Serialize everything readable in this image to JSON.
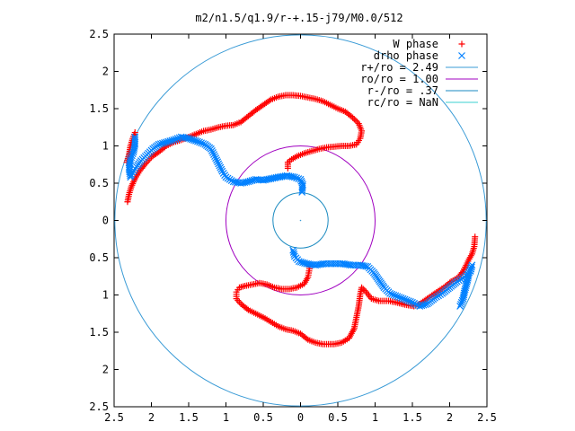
{
  "chart_data": {
    "type": "scatter",
    "title": "m2/n1.5/q1.9/r-+.15-j79/M0.0/512",
    "xlabel": "",
    "ylabel": "",
    "xlim": [
      -2.5,
      2.5
    ],
    "ylim": [
      -2.5,
      2.5
    ],
    "x_tick_values": [
      -2.5,
      -2,
      -1.5,
      -1,
      -0.5,
      0,
      0.5,
      1,
      1.5,
      2,
      2.5
    ],
    "x_tick_labels": [
      "2.5",
      "2",
      "1.5",
      "1",
      "0.5",
      "0",
      "0.5",
      "1",
      "1.5",
      "2",
      "2.5"
    ],
    "y_tick_values": [
      2.5,
      2,
      1.5,
      1,
      0.5,
      0,
      -0.5,
      -1,
      -1.5,
      -2,
      -2.5
    ],
    "y_tick_labels": [
      "2.5",
      "2",
      "1.5",
      "1",
      "0.5",
      "0",
      "0.5",
      "1",
      "1.5",
      "2",
      "2.5"
    ],
    "grid": false,
    "legend_position": "top-right",
    "legend": [
      {
        "label": "W phase",
        "marker": "plus",
        "color": "#ff0000"
      },
      {
        "label": "drho phase",
        "marker": "cross",
        "color": "#0080ff"
      },
      {
        "label": "r+/ro = 2.49",
        "marker": "line",
        "color": "#3a9bd6"
      },
      {
        "label": "ro/ro = 1.00",
        "marker": "line",
        "color": "#a000c0"
      },
      {
        "label": "r-/ro = .37",
        "marker": "line",
        "color": "#1a8ac0"
      },
      {
        "label": "rc/ro = NaN",
        "marker": "line",
        "color": "#3ad0d0"
      }
    ],
    "circles": [
      {
        "name": "r+",
        "radius": 2.49,
        "color": "#3a9bd6"
      },
      {
        "name": "ro",
        "radius": 1.0,
        "color": "#a000c0"
      },
      {
        "name": "r-",
        "radius": 0.37,
        "color": "#1a8ac0"
      }
    ],
    "series": [
      {
        "name": "W phase",
        "color": "#ff0000",
        "marker": "plus",
        "points": [
          [
            2.34,
            -0.22
          ],
          [
            2.33,
            -0.35
          ],
          [
            2.3,
            -0.45
          ],
          [
            2.26,
            -0.52
          ],
          [
            2.22,
            -0.6
          ],
          [
            2.18,
            -0.68
          ],
          [
            2.12,
            -0.76
          ],
          [
            2.02,
            -0.82
          ],
          [
            1.92,
            -0.9
          ],
          [
            1.8,
            -0.98
          ],
          [
            1.7,
            -1.05
          ],
          [
            1.6,
            -1.12
          ],
          [
            1.52,
            -1.15
          ],
          [
            1.4,
            -1.13
          ],
          [
            1.28,
            -1.1
          ],
          [
            1.18,
            -1.08
          ],
          [
            1.05,
            -1.08
          ],
          [
            0.95,
            -1.05
          ],
          [
            0.88,
            -0.96
          ],
          [
            0.82,
            -0.9
          ],
          [
            0.8,
            -1.0
          ],
          [
            0.78,
            -1.15
          ],
          [
            0.75,
            -1.3
          ],
          [
            0.72,
            -1.45
          ],
          [
            0.65,
            -1.58
          ],
          [
            0.55,
            -1.64
          ],
          [
            0.45,
            -1.66
          ],
          [
            0.3,
            -1.66
          ],
          [
            0.2,
            -1.64
          ],
          [
            0.1,
            -1.6
          ],
          [
            0.0,
            -1.52
          ],
          [
            -0.1,
            -1.48
          ],
          [
            -0.2,
            -1.46
          ],
          [
            -0.3,
            -1.42
          ],
          [
            -0.4,
            -1.36
          ],
          [
            -0.5,
            -1.3
          ],
          [
            -0.6,
            -1.25
          ],
          [
            -0.7,
            -1.2
          ],
          [
            -0.8,
            -1.12
          ],
          [
            -0.86,
            -1.05
          ],
          [
            -0.86,
            -0.96
          ],
          [
            -0.82,
            -0.9
          ],
          [
            -0.75,
            -0.88
          ],
          [
            -0.65,
            -0.86
          ],
          [
            -0.55,
            -0.84
          ],
          [
            -0.45,
            -0.86
          ],
          [
            -0.35,
            -0.9
          ],
          [
            -0.25,
            -0.92
          ],
          [
            -0.15,
            -0.92
          ],
          [
            -0.05,
            -0.9
          ],
          [
            0.05,
            -0.85
          ],
          [
            0.1,
            -0.76
          ],
          [
            0.12,
            -0.65
          ],
          [
            0.12,
            -0.6
          ],
          [
            -0.17,
            0.7
          ],
          [
            -0.17,
            0.78
          ],
          [
            -0.12,
            0.82
          ],
          [
            -0.05,
            0.86
          ],
          [
            0.05,
            0.9
          ],
          [
            0.15,
            0.93
          ],
          [
            0.25,
            0.96
          ],
          [
            0.35,
            0.98
          ],
          [
            0.45,
            0.99
          ],
          [
            0.55,
            1.0
          ],
          [
            0.65,
            1.0
          ],
          [
            0.75,
            1.02
          ],
          [
            0.8,
            1.1
          ],
          [
            0.82,
            1.2
          ],
          [
            0.78,
            1.3
          ],
          [
            0.7,
            1.38
          ],
          [
            0.6,
            1.46
          ],
          [
            0.5,
            1.5
          ],
          [
            0.4,
            1.55
          ],
          [
            0.3,
            1.6
          ],
          [
            0.2,
            1.63
          ],
          [
            0.1,
            1.65
          ],
          [
            0.0,
            1.67
          ],
          [
            -0.1,
            1.68
          ],
          [
            -0.2,
            1.68
          ],
          [
            -0.3,
            1.66
          ],
          [
            -0.4,
            1.62
          ],
          [
            -0.5,
            1.55
          ],
          [
            -0.6,
            1.48
          ],
          [
            -0.7,
            1.4
          ],
          [
            -0.8,
            1.32
          ],
          [
            -0.9,
            1.28
          ],
          [
            -1.0,
            1.27
          ],
          [
            -1.1,
            1.25
          ],
          [
            -1.2,
            1.22
          ],
          [
            -1.3,
            1.2
          ],
          [
            -1.4,
            1.16
          ],
          [
            -1.5,
            1.12
          ],
          [
            -1.6,
            1.08
          ],
          [
            -1.7,
            1.05
          ],
          [
            -1.8,
            1.0
          ],
          [
            -1.9,
            0.92
          ],
          [
            -2.0,
            0.85
          ],
          [
            -2.08,
            0.76
          ],
          [
            -2.16,
            0.66
          ],
          [
            -2.22,
            0.56
          ],
          [
            -2.27,
            0.45
          ],
          [
            -2.3,
            0.35
          ],
          [
            -2.32,
            0.25
          ],
          [
            -2.22,
            1.18
          ],
          [
            -2.25,
            1.1
          ],
          [
            -2.28,
            1.0
          ],
          [
            -2.3,
            0.88
          ],
          [
            -2.33,
            0.78
          ]
        ]
      },
      {
        "name": "drho phase",
        "color": "#0080ff",
        "marker": "cross",
        "points": [
          [
            0.02,
            0.38
          ],
          [
            0.03,
            0.48
          ],
          [
            0.0,
            0.55
          ],
          [
            -0.08,
            0.58
          ],
          [
            -0.18,
            0.6
          ],
          [
            -0.3,
            0.58
          ],
          [
            -0.4,
            0.56
          ],
          [
            -0.5,
            0.54
          ],
          [
            -0.6,
            0.55
          ],
          [
            -0.7,
            0.52
          ],
          [
            -0.8,
            0.5
          ],
          [
            -0.9,
            0.52
          ],
          [
            -1.0,
            0.58
          ],
          [
            -1.05,
            0.66
          ],
          [
            -1.1,
            0.76
          ],
          [
            -1.15,
            0.86
          ],
          [
            -1.2,
            0.96
          ],
          [
            -1.28,
            1.02
          ],
          [
            -1.38,
            1.06
          ],
          [
            -1.5,
            1.1
          ],
          [
            -1.6,
            1.12
          ],
          [
            -1.7,
            1.08
          ],
          [
            -1.8,
            1.05
          ],
          [
            -1.9,
            1.02
          ],
          [
            -1.98,
            0.96
          ],
          [
            -2.06,
            0.88
          ],
          [
            -2.14,
            0.8
          ],
          [
            -2.2,
            0.72
          ],
          [
            -2.25,
            0.64
          ],
          [
            -2.28,
            0.58
          ],
          [
            -2.3,
            0.7
          ],
          [
            -2.28,
            0.82
          ],
          [
            -2.24,
            0.92
          ],
          [
            -2.22,
            1.02
          ],
          [
            -2.22,
            1.12
          ],
          [
            -0.1,
            -0.4
          ],
          [
            -0.08,
            -0.48
          ],
          [
            -0.02,
            -0.55
          ],
          [
            0.08,
            -0.58
          ],
          [
            0.2,
            -0.6
          ],
          [
            0.32,
            -0.58
          ],
          [
            0.44,
            -0.58
          ],
          [
            0.56,
            -0.58
          ],
          [
            0.68,
            -0.6
          ],
          [
            0.8,
            -0.6
          ],
          [
            0.9,
            -0.62
          ],
          [
            0.98,
            -0.7
          ],
          [
            1.05,
            -0.8
          ],
          [
            1.12,
            -0.9
          ],
          [
            1.2,
            -0.98
          ],
          [
            1.3,
            -1.02
          ],
          [
            1.4,
            -1.06
          ],
          [
            1.5,
            -1.1
          ],
          [
            1.6,
            -1.15
          ],
          [
            1.7,
            -1.12
          ],
          [
            1.8,
            -1.04
          ],
          [
            1.9,
            -0.98
          ],
          [
            2.0,
            -0.9
          ],
          [
            2.1,
            -0.82
          ],
          [
            2.2,
            -0.76
          ],
          [
            2.28,
            -0.68
          ],
          [
            2.3,
            -0.6
          ],
          [
            2.26,
            -0.7
          ],
          [
            2.24,
            -0.8
          ],
          [
            2.2,
            -0.95
          ],
          [
            2.18,
            -1.05
          ],
          [
            2.14,
            -1.15
          ]
        ]
      }
    ]
  }
}
